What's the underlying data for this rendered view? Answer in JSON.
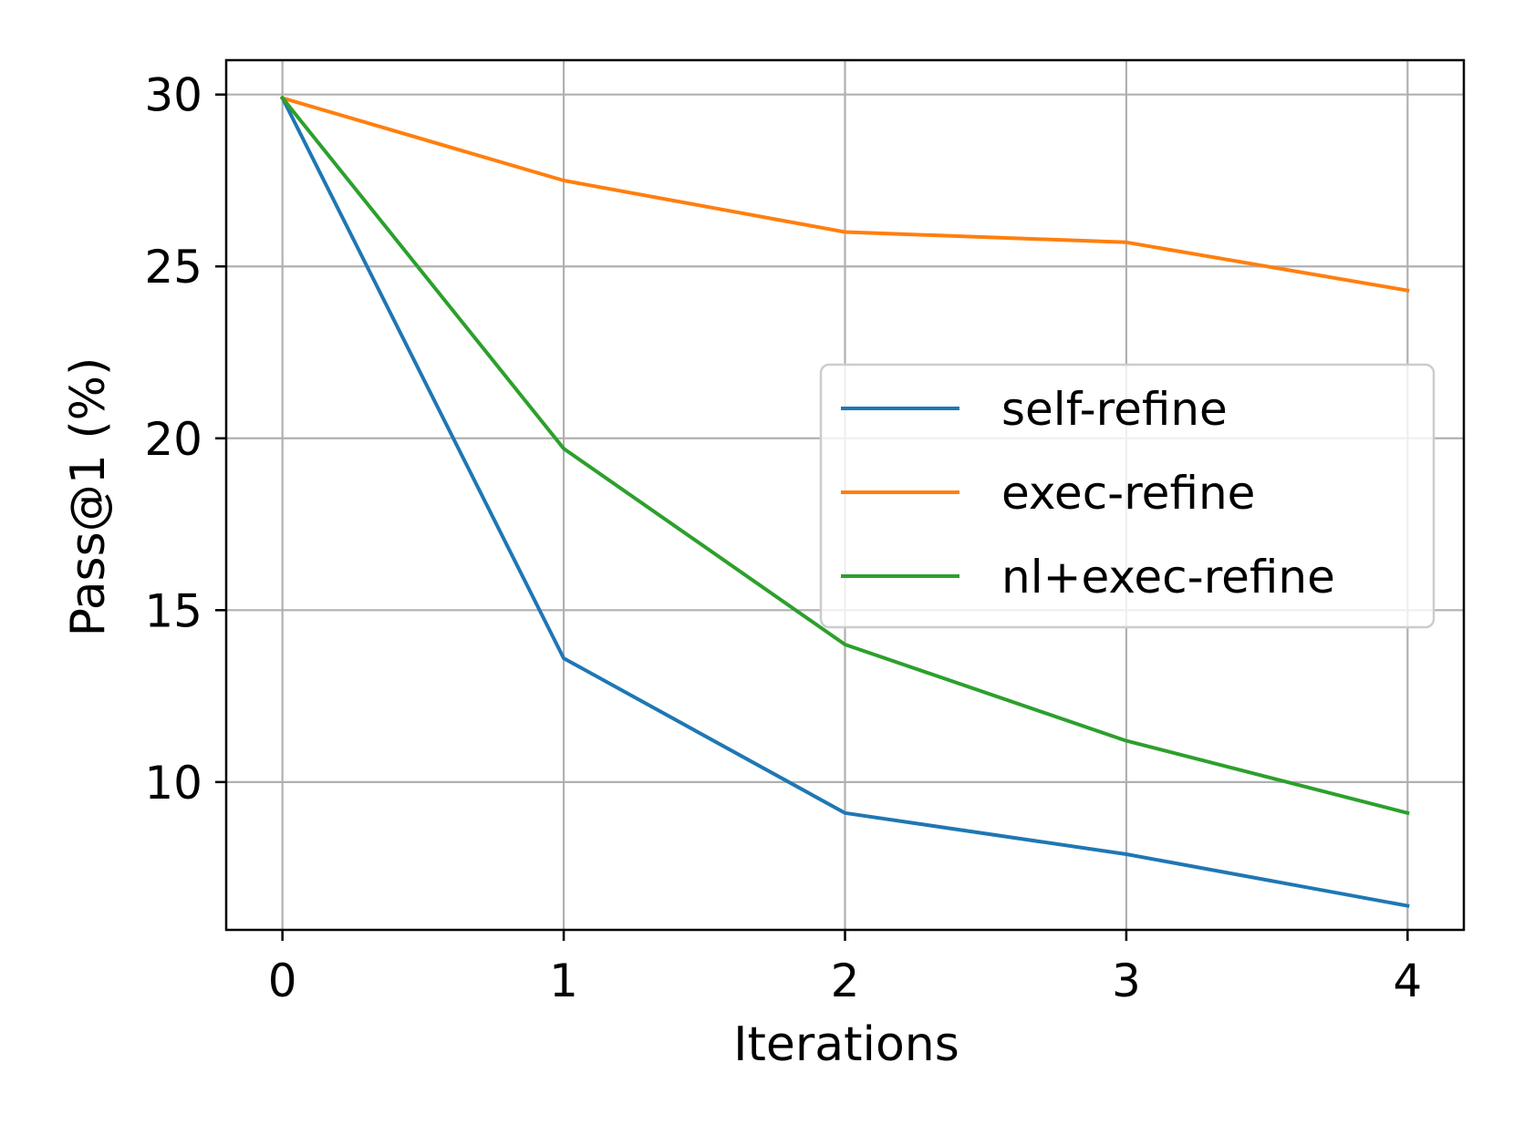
{
  "chart_data": {
    "type": "line",
    "title": "",
    "xlabel": "Iterations",
    "ylabel": "Pass@1 (%)",
    "x": [
      0,
      1,
      2,
      3,
      4
    ],
    "x_ticks": [
      "0",
      "1",
      "2",
      "3",
      "4"
    ],
    "y_ticks": [
      "10",
      "15",
      "20",
      "25",
      "30"
    ],
    "xlim": [
      -0.2,
      4.2
    ],
    "ylim": [
      5.7,
      31.0
    ],
    "grid": true,
    "legend_position": "center-right",
    "series": [
      {
        "name": "self-refine",
        "color": "#1f77b4",
        "values": [
          29.9,
          13.6,
          9.1,
          7.9,
          6.4
        ]
      },
      {
        "name": "exec-refine",
        "color": "#ff7f0e",
        "values": [
          29.9,
          27.5,
          26.0,
          25.7,
          24.3
        ]
      },
      {
        "name": "nl+exec-refine",
        "color": "#2ca02c",
        "values": [
          29.9,
          19.7,
          14.0,
          11.2,
          9.1
        ]
      }
    ]
  }
}
